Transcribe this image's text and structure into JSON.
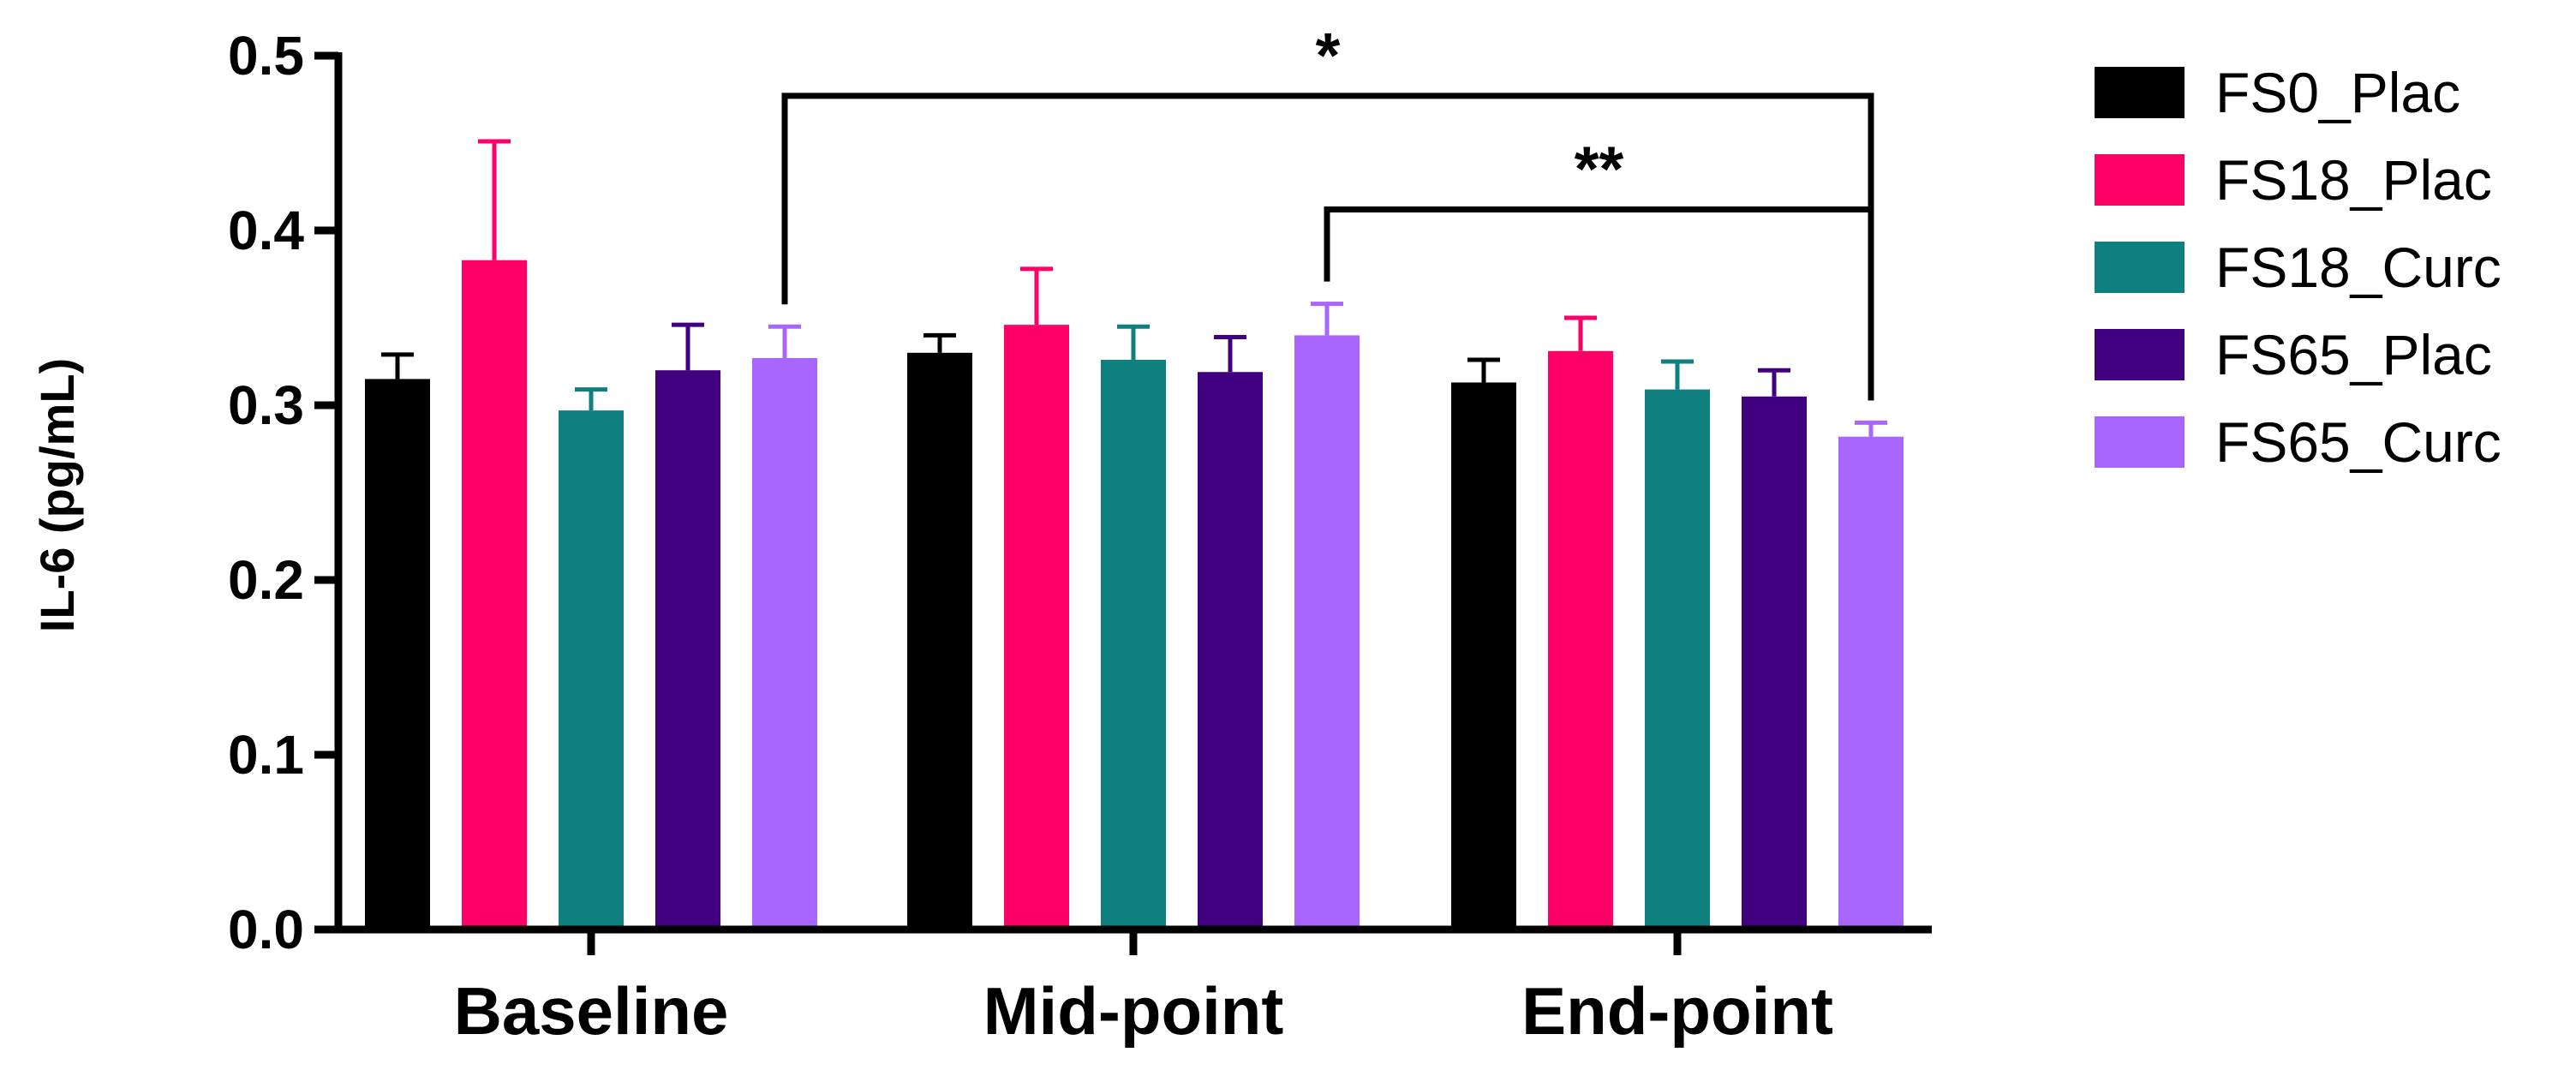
{
  "chart_data": {
    "type": "bar",
    "title": "",
    "xlabel": "",
    "ylabel": "IL-6 (pg/mL)",
    "ylim": [
      0,
      0.5
    ],
    "yticks": [
      "0.0",
      "0.1",
      "0.2",
      "0.3",
      "0.4",
      "0.5"
    ],
    "grid": false,
    "legend_position": "right",
    "categories": [
      "Baseline",
      "Mid-point",
      "End-point"
    ],
    "series": [
      {
        "name": "FS0_Plac",
        "color": "#000000",
        "values": [
          0.315,
          0.33,
          0.313
        ],
        "errors": [
          0.014,
          0.01,
          0.013
        ]
      },
      {
        "name": "FS18_Plac",
        "color": "#ff0066",
        "values": [
          0.383,
          0.346,
          0.331
        ],
        "errors": [
          0.068,
          0.032,
          0.019
        ]
      },
      {
        "name": "FS18_Curc",
        "color": "#0f7f7f",
        "values": [
          0.297,
          0.326,
          0.309
        ],
        "errors": [
          0.012,
          0.019,
          0.016
        ]
      },
      {
        "name": "FS65_Plac",
        "color": "#400080",
        "values": [
          0.32,
          0.319,
          0.305
        ],
        "errors": [
          0.026,
          0.02,
          0.015
        ]
      },
      {
        "name": "FS65_Curc",
        "color": "#a866ff",
        "values": [
          0.327,
          0.34,
          0.282
        ],
        "errors": [
          0.018,
          0.018,
          0.008
        ]
      }
    ],
    "annotations": [
      {
        "label": "*",
        "from_category": "Baseline",
        "from_series": "FS65_Curc",
        "to_category": "End-point",
        "to_series": "FS65_Curc",
        "level": 0.477
      },
      {
        "label": "**",
        "from_category": "Mid-point",
        "from_series": "FS65_Curc",
        "to_category": "End-point",
        "to_series": "FS65_Curc",
        "level": 0.412
      }
    ]
  }
}
